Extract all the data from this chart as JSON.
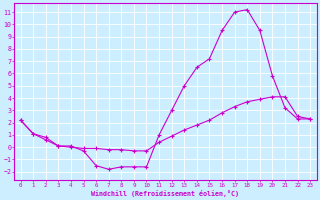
{
  "xlabel": "Windchill (Refroidissement éolien,°C)",
  "bg_color": "#cceeff",
  "line_color": "#cc00cc",
  "grid_color": "#ffffff",
  "xlim": [
    -0.5,
    23.5
  ],
  "ylim": [
    -2.7,
    11.7
  ],
  "xticks": [
    0,
    1,
    2,
    3,
    4,
    5,
    6,
    7,
    8,
    9,
    10,
    11,
    12,
    13,
    14,
    15,
    16,
    17,
    18,
    19,
    20,
    21,
    22,
    23
  ],
  "yticks": [
    -2,
    -1,
    0,
    1,
    2,
    3,
    4,
    5,
    6,
    7,
    8,
    9,
    10,
    11
  ],
  "line1_x": [
    0,
    1,
    2,
    3,
    4,
    5,
    6,
    7,
    8,
    9,
    10,
    11,
    12,
    13,
    14,
    15,
    16,
    17,
    18,
    19,
    20,
    21,
    22,
    23
  ],
  "line1_y": [
    2.2,
    1.1,
    0.8,
    0.1,
    0.1,
    -0.3,
    -1.5,
    -1.8,
    -1.6,
    -1.6,
    -1.6,
    1.0,
    3.0,
    5.0,
    6.5,
    7.2,
    9.5,
    11.0,
    11.2,
    9.5,
    5.8,
    3.2,
    2.3,
    2.3
  ],
  "line2_x": [
    0,
    1,
    2,
    3,
    4,
    5,
    6,
    7,
    8,
    9,
    10,
    11,
    12,
    13,
    14,
    15,
    16,
    17,
    18,
    19,
    20,
    21,
    22,
    23
  ],
  "line2_y": [
    2.2,
    1.1,
    0.6,
    0.1,
    0.0,
    -0.1,
    -0.1,
    -0.2,
    -0.2,
    -0.3,
    -0.3,
    0.4,
    0.9,
    1.4,
    1.8,
    2.2,
    2.8,
    3.3,
    3.7,
    3.9,
    4.1,
    4.1,
    2.5,
    2.3
  ]
}
